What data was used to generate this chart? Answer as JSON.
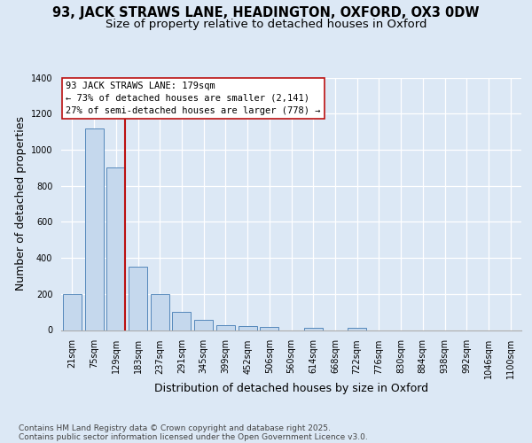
{
  "title_line1": "93, JACK STRAWS LANE, HEADINGTON, OXFORD, OX3 0DW",
  "title_line2": "Size of property relative to detached houses in Oxford",
  "xlabel": "Distribution of detached houses by size in Oxford",
  "ylabel": "Number of detached properties",
  "bar_labels": [
    "21sqm",
    "75sqm",
    "129sqm",
    "183sqm",
    "237sqm",
    "291sqm",
    "345sqm",
    "399sqm",
    "452sqm",
    "506sqm",
    "560sqm",
    "614sqm",
    "668sqm",
    "722sqm",
    "776sqm",
    "830sqm",
    "884sqm",
    "938sqm",
    "992sqm",
    "1046sqm",
    "1100sqm"
  ],
  "bar_values": [
    200,
    1120,
    900,
    350,
    200,
    100,
    55,
    25,
    20,
    15,
    0,
    10,
    0,
    10,
    0,
    0,
    0,
    0,
    0,
    0,
    0
  ],
  "bar_color": "#c5d8ed",
  "bar_edge_color": "#5588bb",
  "background_color": "#dce8f5",
  "grid_color": "#ffffff",
  "vline_color": "#bb1111",
  "vline_xindex": 2,
  "annotation_text": "93 JACK STRAWS LANE: 179sqm\n← 73% of detached houses are smaller (2,141)\n27% of semi-detached houses are larger (778) →",
  "annotation_box_facecolor": "#ffffff",
  "annotation_box_edgecolor": "#bb1111",
  "ylim": [
    0,
    1400
  ],
  "yticks": [
    0,
    200,
    400,
    600,
    800,
    1000,
    1200,
    1400
  ],
  "footnote": "Contains HM Land Registry data © Crown copyright and database right 2025.\nContains public sector information licensed under the Open Government Licence v3.0.",
  "title_fontsize": 10.5,
  "subtitle_fontsize": 9.5,
  "axis_label_fontsize": 9,
  "tick_fontsize": 7,
  "annotation_fontsize": 7.5,
  "footnote_fontsize": 6.5
}
